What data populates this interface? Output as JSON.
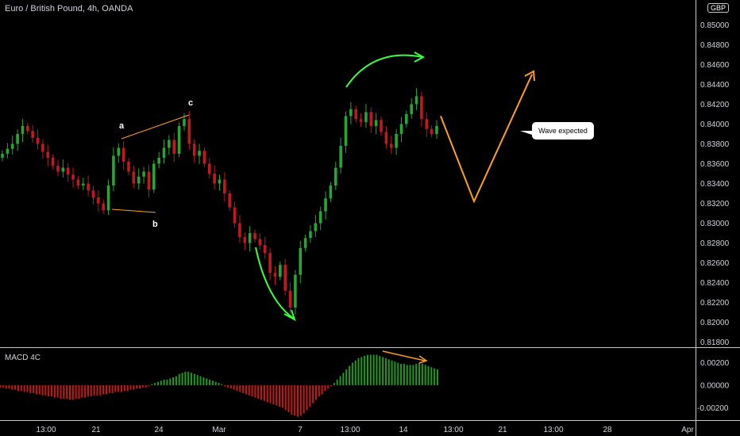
{
  "header": {
    "symbol_title": "Euro / British Pound, 4h, OANDA",
    "currency_badge": "GBP"
  },
  "indicator": {
    "label": "MACD 4C"
  },
  "annotations": {
    "wave_expected": "Wave expected",
    "wave_labels": {
      "a": "a",
      "b": "b",
      "c": "c"
    }
  },
  "colors": {
    "background": "#000000",
    "bull_candle": "#26a634",
    "bear_candle": "#c0191e",
    "arrow_green": "#3cff3c",
    "projection_orange": "#ff9f1a",
    "abc_orange": "#ff9f1a",
    "separator": "#c8c8c8",
    "macd_pos": "#1e9b1e",
    "macd_neg": "#c21a1a"
  },
  "chart_data": [
    {
      "type": "candlestick",
      "title": "Euro / British Pound, 4h, OANDA",
      "y_axis": {
        "side": "right",
        "ticks": [
          "0.85000",
          "0.84800",
          "0.84600",
          "0.84400",
          "0.84200",
          "0.84000",
          "0.83800",
          "0.83600",
          "0.83400",
          "0.83200",
          "0.83000",
          "0.82800",
          "0.82600",
          "0.82400",
          "0.82200",
          "0.82000",
          "0.81800"
        ],
        "ylim": [
          0.8175,
          0.8525
        ]
      },
      "x_axis": {
        "ticks": [
          "13:00",
          "21",
          "24",
          "Mar",
          "7",
          "13:00",
          "14",
          "13:00",
          "21",
          "13:00",
          "28",
          "Apr"
        ]
      },
      "series_close": [
        0.837,
        0.8375,
        0.838,
        0.839,
        0.8398,
        0.8393,
        0.8386,
        0.838,
        0.8372,
        0.8366,
        0.8358,
        0.8352,
        0.8356,
        0.8349,
        0.8344,
        0.8338,
        0.834,
        0.8333,
        0.8326,
        0.832,
        0.8313,
        0.8338,
        0.8368,
        0.8376,
        0.8362,
        0.8352,
        0.834,
        0.8347,
        0.8352,
        0.8334,
        0.836,
        0.8366,
        0.8376,
        0.8384,
        0.837,
        0.8398,
        0.8405,
        0.838,
        0.8368,
        0.8373,
        0.836,
        0.835,
        0.834,
        0.8344,
        0.833,
        0.8316,
        0.83,
        0.8286,
        0.828,
        0.829,
        0.8284,
        0.8278,
        0.827,
        0.825,
        0.8246,
        0.8258,
        0.8232,
        0.8215,
        0.8248,
        0.8275,
        0.8285,
        0.8292,
        0.83,
        0.8312,
        0.8325,
        0.8338,
        0.8356,
        0.8378,
        0.8408,
        0.8415,
        0.8405,
        0.8402,
        0.8412,
        0.8398,
        0.8404,
        0.8392,
        0.838,
        0.8376,
        0.839,
        0.84,
        0.841,
        0.842,
        0.8428,
        0.8405,
        0.8395,
        0.839,
        0.8398
      ],
      "annotations": [
        "a",
        "b",
        "c",
        "Wave expected"
      ],
      "projection_path": [
        0.8408,
        0.8322,
        0.845
      ]
    },
    {
      "type": "bar",
      "title": "MACD 4C",
      "y_axis": {
        "side": "right",
        "ticks": [
          "0.00200",
          "0.00000",
          "-0.00200"
        ],
        "ylim": [
          -0.0031,
          0.0033
        ]
      },
      "histogram": [
        -0.0002,
        -0.0002,
        -0.0003,
        -0.0003,
        -0.0004,
        -0.0004,
        -0.0005,
        -0.0005,
        -0.0006,
        -0.0006,
        -0.0007,
        -0.0007,
        -0.0008,
        -0.0008,
        -0.0009,
        -0.0009,
        -0.001,
        -0.001,
        -0.0011,
        -0.0011,
        -0.0012,
        -0.0012,
        -0.0012,
        -0.0013,
        -0.0013,
        -0.0012,
        -0.0012,
        -0.0011,
        -0.0011,
        -0.001,
        -0.001,
        -0.0009,
        -0.0009,
        -0.0009,
        -0.0008,
        -0.0008,
        -0.0007,
        -0.0007,
        -0.0006,
        -0.0006,
        -0.0006,
        -0.0005,
        -0.0005,
        -0.0004,
        -0.0004,
        -0.0003,
        -0.0003,
        -0.0002,
        -0.0002,
        -0.0001,
        0.0001,
        0.0002,
        0.0003,
        0.0004,
        0.0005,
        0.0005,
        0.0006,
        0.0007,
        0.0008,
        0.001,
        0.0011,
        0.0012,
        0.0012,
        0.0011,
        0.001,
        0.0009,
        0.0008,
        0.0007,
        0.0006,
        0.0005,
        0.0004,
        0.0003,
        0.0002,
        0.0001,
        -0.0001,
        -0.0002,
        -0.0003,
        -0.0004,
        -0.0005,
        -0.0006,
        -0.0007,
        -0.0008,
        -0.0009,
        -0.001,
        -0.0011,
        -0.0012,
        -0.0013,
        -0.0014,
        -0.0015,
        -0.0016,
        -0.0017,
        -0.0018,
        -0.0019,
        -0.002,
        -0.0022,
        -0.0024,
        -0.0026,
        -0.0027,
        -0.0028,
        -0.0027,
        -0.0025,
        -0.0022,
        -0.0019,
        -0.0016,
        -0.0013,
        -0.001,
        -0.0008,
        -0.0005,
        -0.0003,
        -0.0001,
        0.0002,
        0.0005,
        0.0008,
        0.0011,
        0.0014,
        0.0017,
        0.002,
        0.0022,
        0.0024,
        0.0025,
        0.0026,
        0.0027,
        0.0027,
        0.0027,
        0.0027,
        0.0026,
        0.0025,
        0.0024,
        0.0023,
        0.0022,
        0.0021,
        0.002,
        0.0019,
        0.0019,
        0.0018,
        0.0018,
        0.0018,
        0.0019,
        0.002,
        0.0019,
        0.0018,
        0.0017,
        0.0016,
        0.0015,
        0.0014
      ]
    }
  ]
}
